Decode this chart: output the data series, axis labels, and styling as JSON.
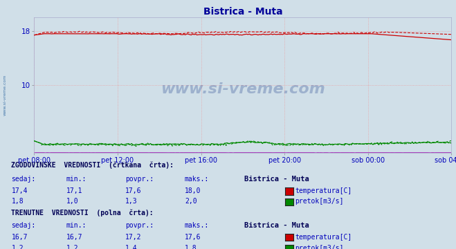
{
  "title": "Bistrica - Muta",
  "title_color": "#000099",
  "bg_color": "#d0dfe8",
  "plot_bg_color": "#d0dfe8",
  "grid_color": "#ee9999",
  "axis_label_color": "#0000bb",
  "text_color": "#0000bb",
  "bold_text_color": "#000055",
  "x_tick_labels": [
    "pet 08:00",
    "pet 12:00",
    "pet 16:00",
    "pet 20:00",
    "sob 00:00",
    "sob 04:00"
  ],
  "y_ticks": [
    10,
    18
  ],
  "ylim": [
    0,
    20
  ],
  "temp_color": "#cc0000",
  "flow_color": "#008800",
  "purple_color": "#9900aa",
  "n_points": 288,
  "legend_station": "Bistrica - Muta",
  "label_temp": "temperatura[C]",
  "label_flow": "pretok[m3/s]",
  "hist_sedaj": "17,4",
  "hist_min_temp": "17,1",
  "hist_povpr_temp": "17,6",
  "hist_maks_temp": "18,0",
  "hist_sedaj_flow": "1,8",
  "hist_min_flow": "1,0",
  "hist_povpr_flow": "1,3",
  "hist_maks_flow": "2,0",
  "curr_sedaj_temp": "16,7",
  "curr_min_temp": "16,7",
  "curr_povpr_temp": "17,2",
  "curr_maks_temp": "17,6",
  "curr_sedaj_flow": "1,2",
  "curr_min_flow": "1,2",
  "curr_povpr_flow": "1,4",
  "curr_maks_flow": "1,8",
  "watermark_text": "www.si-vreme.com",
  "side_text": "www.si-vreme.com",
  "hist_label": "ZGODOVINSKE  VREDNOSTI  (črtkana  črta):",
  "curr_label": "TRENUTNE  VREDNOSTI  (polna  črta):",
  "col_sedaj": "sedaj:",
  "col_min": "min.:",
  "col_povpr": "povpr.:",
  "col_maks": "maks.:"
}
